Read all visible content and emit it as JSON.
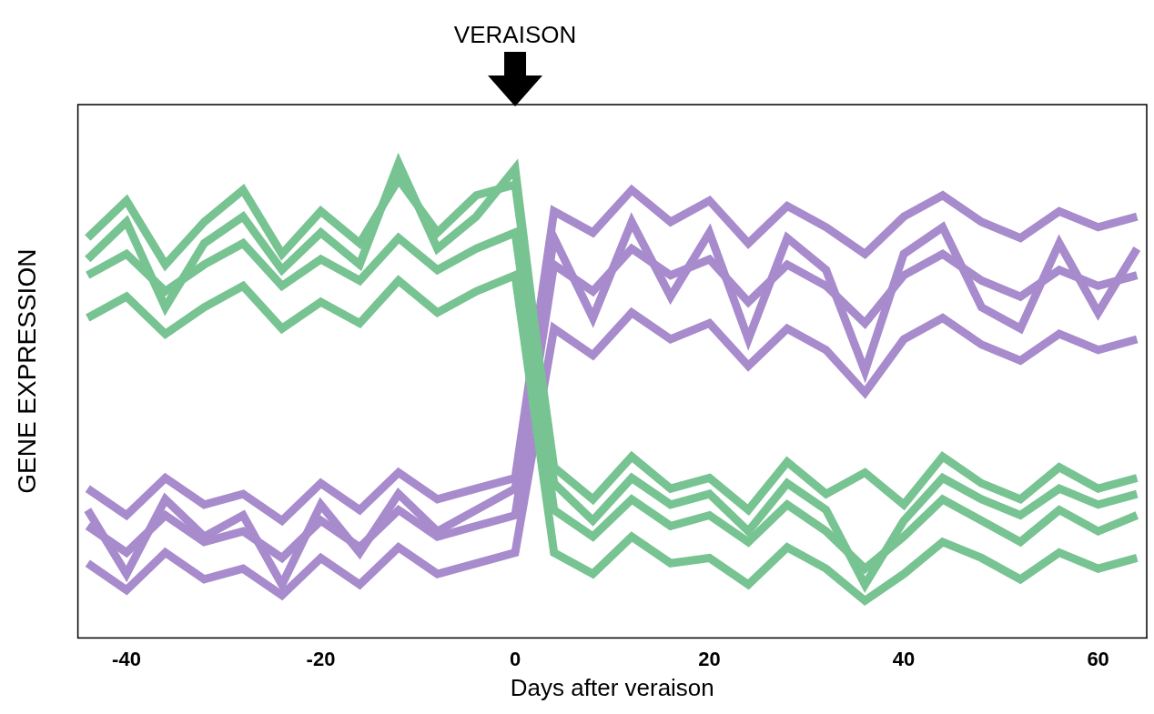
{
  "chart_data": {
    "type": "line",
    "annotation": {
      "text": "VERAISON",
      "x": 0
    },
    "x_label": "Days after veraison",
    "y_label": "GENE EXPRESSION",
    "x": [
      -44,
      -40,
      -36,
      -32,
      -28,
      -24,
      -20,
      -16,
      -12,
      -8,
      -4,
      0,
      4,
      8,
      12,
      16,
      20,
      24,
      28,
      32,
      36,
      40,
      44,
      48,
      52,
      56,
      60,
      64
    ],
    "xlim": [
      -45,
      65
    ],
    "xticks": [
      -40,
      -20,
      0,
      20,
      40,
      60
    ],
    "ylim": [
      0,
      10
    ],
    "yticks": [],
    "tick_labels": "x",
    "grid": false,
    "series": [
      {
        "color": "#77c392",
        "values": [
          7.5,
          8.2,
          7.0,
          7.8,
          8.4,
          7.2,
          8.0,
          7.4,
          8.6,
          7.6,
          8.3,
          8.5,
          3.2,
          2.6,
          3.4,
          2.8,
          3.0,
          2.4,
          3.3,
          2.7,
          3.1,
          2.5,
          3.4,
          2.9,
          2.6,
          3.2,
          2.8,
          3.0
        ]
      },
      {
        "color": "#77c392",
        "values": [
          6.8,
          7.2,
          6.5,
          7.0,
          7.4,
          6.6,
          7.1,
          6.7,
          7.5,
          6.9,
          7.3,
          7.6,
          2.4,
          1.9,
          2.6,
          2.1,
          2.3,
          1.8,
          2.5,
          2.0,
          1.3,
          1.9,
          2.6,
          2.2,
          1.8,
          2.4,
          2.0,
          2.3
        ]
      },
      {
        "color": "#77c392",
        "values": [
          6.0,
          6.4,
          5.7,
          6.2,
          6.6,
          5.8,
          6.3,
          5.9,
          6.7,
          6.1,
          6.5,
          6.8,
          1.6,
          1.2,
          1.9,
          1.4,
          1.5,
          1.0,
          1.7,
          1.3,
          0.7,
          1.2,
          1.8,
          1.5,
          1.1,
          1.6,
          1.3,
          1.5
        ]
      },
      {
        "color": "#77c392",
        "values": [
          7.1,
          7.8,
          6.2,
          7.4,
          7.9,
          6.9,
          7.6,
          7.0,
          8.9,
          7.3,
          7.9,
          8.8,
          2.9,
          2.2,
          3.0,
          2.5,
          2.7,
          2.0,
          2.9,
          2.4,
          1.0,
          2.2,
          3.0,
          2.6,
          2.3,
          2.8,
          2.5,
          2.7
        ]
      },
      {
        "color": "#a78bcc",
        "values": [
          2.8,
          2.3,
          3.0,
          2.5,
          2.7,
          2.2,
          2.9,
          2.4,
          3.1,
          2.6,
          2.8,
          3.0,
          8.0,
          7.6,
          8.4,
          7.8,
          8.2,
          7.4,
          8.1,
          7.7,
          7.2,
          7.9,
          8.3,
          7.8,
          7.5,
          8.0,
          7.7,
          7.9
        ]
      },
      {
        "color": "#a78bcc",
        "values": [
          2.1,
          1.6,
          2.3,
          1.8,
          2.0,
          1.5,
          2.2,
          1.7,
          2.4,
          1.9,
          2.1,
          2.3,
          7.0,
          6.5,
          7.3,
          6.8,
          7.1,
          6.3,
          7.0,
          6.6,
          5.9,
          6.8,
          7.2,
          6.7,
          6.4,
          6.9,
          6.6,
          6.8
        ]
      },
      {
        "color": "#a78bcc",
        "values": [
          1.4,
          0.9,
          1.6,
          1.1,
          1.3,
          0.8,
          1.5,
          1.0,
          1.7,
          1.2,
          1.4,
          1.6,
          5.8,
          5.3,
          6.1,
          5.6,
          5.9,
          5.1,
          5.8,
          5.4,
          4.6,
          5.6,
          6.0,
          5.5,
          5.2,
          5.7,
          5.4,
          5.6
        ]
      },
      {
        "color": "#a78bcc",
        "values": [
          2.4,
          1.2,
          2.6,
          1.9,
          2.3,
          1.0,
          2.5,
          1.6,
          2.7,
          2.0,
          2.4,
          2.8,
          7.5,
          6.0,
          7.8,
          6.4,
          7.6,
          5.6,
          7.5,
          6.9,
          5.0,
          7.2,
          7.7,
          6.2,
          5.8,
          7.4,
          6.1,
          7.3
        ]
      }
    ]
  }
}
